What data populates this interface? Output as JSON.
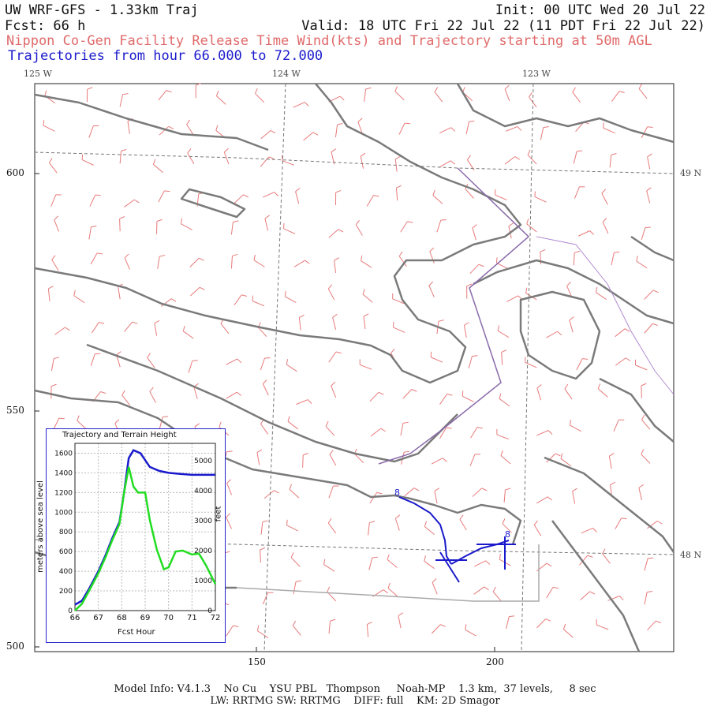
{
  "header": {
    "model_title": "UW WRF-GFS - 1.33km Traj",
    "init": "Init: 00 UTC Wed 20 Jul 22",
    "forecast": "Fcst:   66 h",
    "valid": "Valid: 18 UTC Fri 22 Jul 22 (11 PDT Fri 22 Jul 22)",
    "description": "Nippon Co-Gen Facility Release Time Wind(kts) and Trajectory starting at 50m AGL",
    "trajectory_range": "Trajectories from hour  66.000 to  72.000"
  },
  "map": {
    "longitude_labels": [
      "125 W",
      "124 W",
      "123 W"
    ],
    "latitude_labels": [
      "49 N",
      "48 N"
    ],
    "y_axis_ticks": [
      "600",
      "550",
      "500"
    ],
    "x_axis_ticks": [
      "150",
      "200"
    ],
    "trajectory_marker": "8",
    "colors": {
      "coastline": "#7a7a7a",
      "wind_barbs": "#e87a7a",
      "trajectory": "#1a1acc",
      "border": "#9a66bb"
    }
  },
  "inset": {
    "title": "Trajectory and Terrain Height",
    "y_left_label": "meters above sea level",
    "y_right_label": "feet",
    "x_label": "Fcst Hour",
    "y_left_ticks": [
      "1600",
      "1400",
      "1200",
      "1000",
      "800",
      "600",
      "400",
      "200",
      "0"
    ],
    "y_right_ticks": [
      "5000",
      "4000",
      "3000",
      "2000",
      "1000",
      "0"
    ],
    "x_ticks": [
      "66",
      "67",
      "68",
      "69",
      "70",
      "71",
      "72"
    ]
  },
  "chart_data": {
    "type": "line",
    "title": "Trajectory and Terrain Height",
    "xlabel": "Fcst Hour",
    "ylabel": "meters above sea level",
    "xlim": [
      66,
      72
    ],
    "ylim": [
      0,
      1700
    ],
    "series": [
      {
        "color": "#1a1acc",
        "x": [
          66.0,
          66.3,
          66.6,
          67.0,
          67.3,
          67.6,
          67.9,
          68.1,
          68.3,
          68.5,
          68.8,
          69.2,
          69.6,
          70.0,
          70.5,
          71.0,
          71.5,
          72.0
        ],
        "y": [
          60,
          100,
          220,
          400,
          560,
          740,
          900,
          1200,
          1550,
          1630,
          1600,
          1460,
          1420,
          1400,
          1390,
          1380,
          1380,
          1380
        ]
      },
      {
        "color": "#22dd22",
        "x": [
          66.0,
          66.3,
          66.6,
          67.0,
          67.3,
          67.6,
          67.9,
          68.1,
          68.3,
          68.5,
          68.7,
          69.0,
          69.2,
          69.5,
          69.8,
          70.0,
          70.3,
          70.6,
          71.0,
          71.3,
          71.6,
          72.0
        ],
        "y": [
          0,
          70,
          200,
          380,
          540,
          720,
          880,
          1200,
          1460,
          1260,
          1200,
          1200,
          920,
          620,
          420,
          440,
          600,
          610,
          570,
          580,
          460,
          270
        ]
      }
    ]
  },
  "footer": {
    "line1": "Model Info: V4.1.3    No Cu    YSU PBL   Thompson     Noah-MP    1.3 km,  37 levels,     8 sec",
    "line2": "LW: RRTMG SW: RRTMG    DIFF: full    KM: 2D Smagor"
  }
}
